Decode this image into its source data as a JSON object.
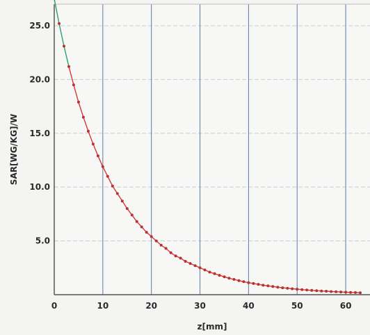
{
  "chart_data": {
    "type": "line",
    "title": "",
    "xlabel": "z[mm]",
    "ylabel": "SAR[WG/KG]/W",
    "xlim": [
      0,
      65
    ],
    "ylim": [
      0,
      27
    ],
    "x_ticks": [
      "0",
      "10",
      "20",
      "30",
      "40",
      "50",
      "60"
    ],
    "y_ticks": [
      "5.0",
      "10.0",
      "15.0",
      "20.0",
      "25.0"
    ],
    "grid": true,
    "legend": "none",
    "colors": {
      "curve": "#d23a3a",
      "curve_start": "#2f9e6b",
      "marker": "#b83232",
      "grid_vertical": "#5f78a8",
      "grid_horizontal": "#c9ccd4",
      "axis": "#555555",
      "background": "#f4f4f2"
    },
    "series": [
      {
        "values": [
          {
            "x": 0,
            "y": 27.5
          },
          {
            "x": 1,
            "y": 25.2
          },
          {
            "x": 2,
            "y": 23.1
          },
          {
            "x": 3,
            "y": 21.2
          },
          {
            "x": 4,
            "y": 19.5
          },
          {
            "x": 5,
            "y": 17.9
          },
          {
            "x": 6,
            "y": 16.5
          },
          {
            "x": 7,
            "y": 15.2
          },
          {
            "x": 8,
            "y": 14.0
          },
          {
            "x": 9,
            "y": 12.9
          },
          {
            "x": 10,
            "y": 11.9
          },
          {
            "x": 11,
            "y": 11.0
          },
          {
            "x": 12,
            "y": 10.1
          },
          {
            "x": 13,
            "y": 9.4
          },
          {
            "x": 14,
            "y": 8.7
          },
          {
            "x": 15,
            "y": 8.0
          },
          {
            "x": 16,
            "y": 7.4
          },
          {
            "x": 17,
            "y": 6.8
          },
          {
            "x": 18,
            "y": 6.3
          },
          {
            "x": 19,
            "y": 5.8
          },
          {
            "x": 20,
            "y": 5.4
          },
          {
            "x": 21,
            "y": 5.0
          },
          {
            "x": 22,
            "y": 4.6
          },
          {
            "x": 23,
            "y": 4.3
          },
          {
            "x": 24,
            "y": 3.9
          },
          {
            "x": 25,
            "y": 3.6
          },
          {
            "x": 26,
            "y": 3.4
          },
          {
            "x": 27,
            "y": 3.1
          },
          {
            "x": 28,
            "y": 2.9
          },
          {
            "x": 29,
            "y": 2.7
          },
          {
            "x": 30,
            "y": 2.5
          },
          {
            "x": 31,
            "y": 2.3
          },
          {
            "x": 32,
            "y": 2.1
          },
          {
            "x": 33,
            "y": 1.95
          },
          {
            "x": 34,
            "y": 1.8
          },
          {
            "x": 35,
            "y": 1.66
          },
          {
            "x": 36,
            "y": 1.53
          },
          {
            "x": 37,
            "y": 1.42
          },
          {
            "x": 38,
            "y": 1.31
          },
          {
            "x": 39,
            "y": 1.21
          },
          {
            "x": 40,
            "y": 1.12
          },
          {
            "x": 41,
            "y": 1.04
          },
          {
            "x": 42,
            "y": 0.96
          },
          {
            "x": 43,
            "y": 0.88
          },
          {
            "x": 44,
            "y": 0.82
          },
          {
            "x": 45,
            "y": 0.76
          },
          {
            "x": 46,
            "y": 0.7
          },
          {
            "x": 47,
            "y": 0.64
          },
          {
            "x": 48,
            "y": 0.6
          },
          {
            "x": 49,
            "y": 0.55
          },
          {
            "x": 50,
            "y": 0.51
          },
          {
            "x": 51,
            "y": 0.47
          },
          {
            "x": 52,
            "y": 0.43
          },
          {
            "x": 53,
            "y": 0.4
          },
          {
            "x": 54,
            "y": 0.37
          },
          {
            "x": 55,
            "y": 0.34
          },
          {
            "x": 56,
            "y": 0.32
          },
          {
            "x": 57,
            "y": 0.29
          },
          {
            "x": 58,
            "y": 0.27
          },
          {
            "x": 59,
            "y": 0.25
          },
          {
            "x": 60,
            "y": 0.23
          },
          {
            "x": 61,
            "y": 0.21
          },
          {
            "x": 62,
            "y": 0.2
          },
          {
            "x": 63,
            "y": 0.18
          }
        ]
      }
    ]
  }
}
